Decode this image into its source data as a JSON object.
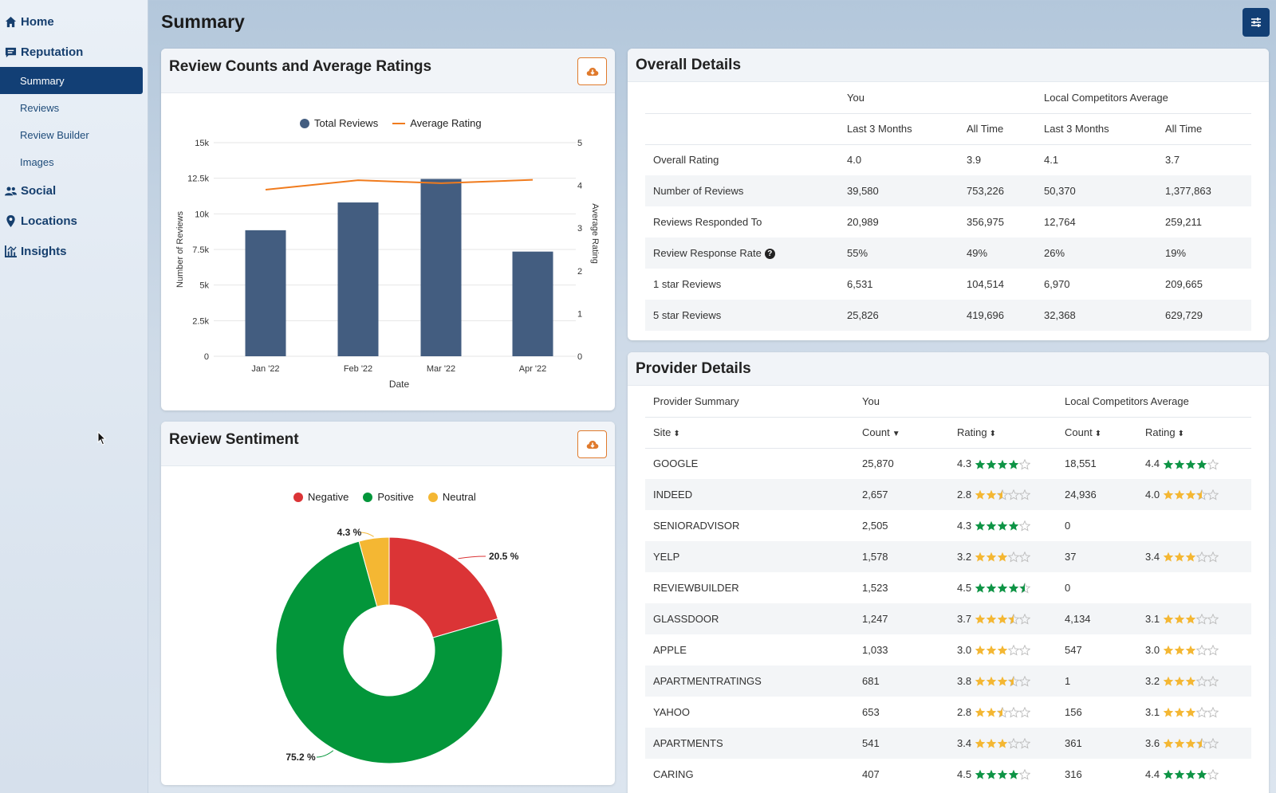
{
  "sidebar": {
    "items": [
      {
        "label": "Home",
        "icon": "home-icon"
      },
      {
        "label": "Reputation",
        "icon": "comment-icon"
      },
      {
        "label": "Social",
        "icon": "users-icon"
      },
      {
        "label": "Locations",
        "icon": "map-pin-icon"
      },
      {
        "label": "Insights",
        "icon": "chart-icon"
      }
    ],
    "reputation_sub": [
      "Summary",
      "Reviews",
      "Review Builder",
      "Images"
    ],
    "active": "Summary"
  },
  "header": {
    "title": "Summary"
  },
  "colors": {
    "primary": "#123f75",
    "bar": "#435d80",
    "line": "#f07b1d",
    "negative": "#db3436",
    "positive": "#03963a",
    "neutral": "#f4b733",
    "star_green": "#0e9445",
    "star_orange": "#f4b733",
    "download": "#e07a2c"
  },
  "reviews_card": {
    "title": "Review Counts and Average Ratings",
    "legend": [
      "Total Reviews",
      "Average Rating"
    ],
    "xlabel": "Date",
    "ylabel_left": "Number of Reviews",
    "ylabel_right": "Average Rating"
  },
  "sentiment_card": {
    "title": "Review Sentiment",
    "legend": [
      "Negative",
      "Positive",
      "Neutral"
    ]
  },
  "chart_data": [
    {
      "type": "bar",
      "title": "Review Counts and Average Ratings",
      "categories": [
        "Jan '22",
        "Feb '22",
        "Mar '22",
        "Apr '22"
      ],
      "series": [
        {
          "name": "Total Reviews",
          "type": "bar",
          "axis": "left",
          "values": [
            8850,
            10800,
            12450,
            7350
          ]
        },
        {
          "name": "Average Rating",
          "type": "line",
          "axis": "right",
          "values": [
            3.9,
            4.12,
            4.05,
            4.13
          ]
        }
      ],
      "xlabel": "Date",
      "ylabel": "Number of Reviews",
      "y2label": "Average Rating",
      "ylim": [
        0,
        15000
      ],
      "y2lim": [
        0,
        5
      ],
      "yticks": [
        "0",
        "2.5k",
        "5k",
        "7.5k",
        "10k",
        "12.5k",
        "15k"
      ],
      "y2ticks": [
        "0",
        "1",
        "2",
        "3",
        "4",
        "5"
      ],
      "legend": "top"
    },
    {
      "type": "pie",
      "title": "Review Sentiment",
      "donut": true,
      "labels": [
        "Negative",
        "Positive",
        "Neutral"
      ],
      "values": [
        20.5,
        75.2,
        4.3
      ],
      "data_labels": [
        "20.5 %",
        "75.2 %",
        "4.3 %"
      ],
      "legend": "top"
    }
  ],
  "overall": {
    "title": "Overall Details",
    "group_you": "You",
    "group_comp": "Local Competitors Average",
    "cols": [
      "Last 3 Months",
      "All Time",
      "Last 3 Months",
      "All Time"
    ],
    "rows": [
      {
        "label": "Overall Rating",
        "v": [
          "4.0",
          "3.9",
          "4.1",
          "3.7"
        ]
      },
      {
        "label": "Number of Reviews",
        "v": [
          "39,580",
          "753,226",
          "50,370",
          "1,377,863"
        ]
      },
      {
        "label": "Reviews Responded To",
        "v": [
          "20,989",
          "356,975",
          "12,764",
          "259,211"
        ]
      },
      {
        "label": "Review Response Rate",
        "v": [
          "55%",
          "49%",
          "26%",
          "19%"
        ],
        "help": true
      },
      {
        "label": "1 star Reviews",
        "v": [
          "6,531",
          "104,514",
          "6,970",
          "209,665"
        ]
      },
      {
        "label": "5 star Reviews",
        "v": [
          "25,826",
          "419,696",
          "32,368",
          "629,729"
        ]
      }
    ]
  },
  "provider": {
    "title": "Provider Details",
    "summary_label": "Provider Summary",
    "group_you": "You",
    "group_comp": "Local Competitors Average",
    "cols": [
      "Site",
      "Count",
      "Rating",
      "Count",
      "Rating"
    ],
    "rows": [
      {
        "site": "GOOGLE",
        "count": "25,870",
        "rating": "4.3",
        "stars": 4,
        "color": "green",
        "c_count": "18,551",
        "c_rating": "4.4",
        "c_stars": 4,
        "c_color": "green"
      },
      {
        "site": "INDEED",
        "count": "2,657",
        "rating": "2.8",
        "stars": 2.5,
        "color": "orange",
        "c_count": "24,936",
        "c_rating": "4.0",
        "c_stars": 3.5,
        "c_color": "orange"
      },
      {
        "site": "SENIORADVISOR",
        "count": "2,505",
        "rating": "4.3",
        "stars": 4,
        "color": "green",
        "c_count": "0",
        "c_rating": "",
        "c_stars": null,
        "c_color": ""
      },
      {
        "site": "YELP",
        "count": "1,578",
        "rating": "3.2",
        "stars": 3,
        "color": "orange",
        "c_count": "37",
        "c_rating": "3.4",
        "c_stars": 3,
        "c_color": "orange"
      },
      {
        "site": "REVIEWBUILDER",
        "count": "1,523",
        "rating": "4.5",
        "stars": 4.5,
        "color": "green",
        "c_count": "0",
        "c_rating": "",
        "c_stars": null,
        "c_color": ""
      },
      {
        "site": "GLASSDOOR",
        "count": "1,247",
        "rating": "3.7",
        "stars": 3.5,
        "color": "orange",
        "c_count": "4,134",
        "c_rating": "3.1",
        "c_stars": 3,
        "c_color": "orange"
      },
      {
        "site": "APPLE",
        "count": "1,033",
        "rating": "3.0",
        "stars": 3,
        "color": "orange",
        "c_count": "547",
        "c_rating": "3.0",
        "c_stars": 3,
        "c_color": "orange"
      },
      {
        "site": "APARTMENTRATINGS",
        "count": "681",
        "rating": "3.8",
        "stars": 3.5,
        "color": "orange",
        "c_count": "1",
        "c_rating": "3.2",
        "c_stars": 3,
        "c_color": "orange"
      },
      {
        "site": "YAHOO",
        "count": "653",
        "rating": "2.8",
        "stars": 2.5,
        "color": "orange",
        "c_count": "156",
        "c_rating": "3.1",
        "c_stars": 3,
        "c_color": "orange"
      },
      {
        "site": "APARTMENTS",
        "count": "541",
        "rating": "3.4",
        "stars": 3,
        "color": "orange",
        "c_count": "361",
        "c_rating": "3.6",
        "c_stars": 3.5,
        "c_color": "orange"
      },
      {
        "site": "CARING",
        "count": "407",
        "rating": "4.5",
        "stars": 4,
        "color": "green",
        "c_count": "316",
        "c_rating": "4.4",
        "c_stars": 4,
        "c_color": "green"
      }
    ]
  }
}
